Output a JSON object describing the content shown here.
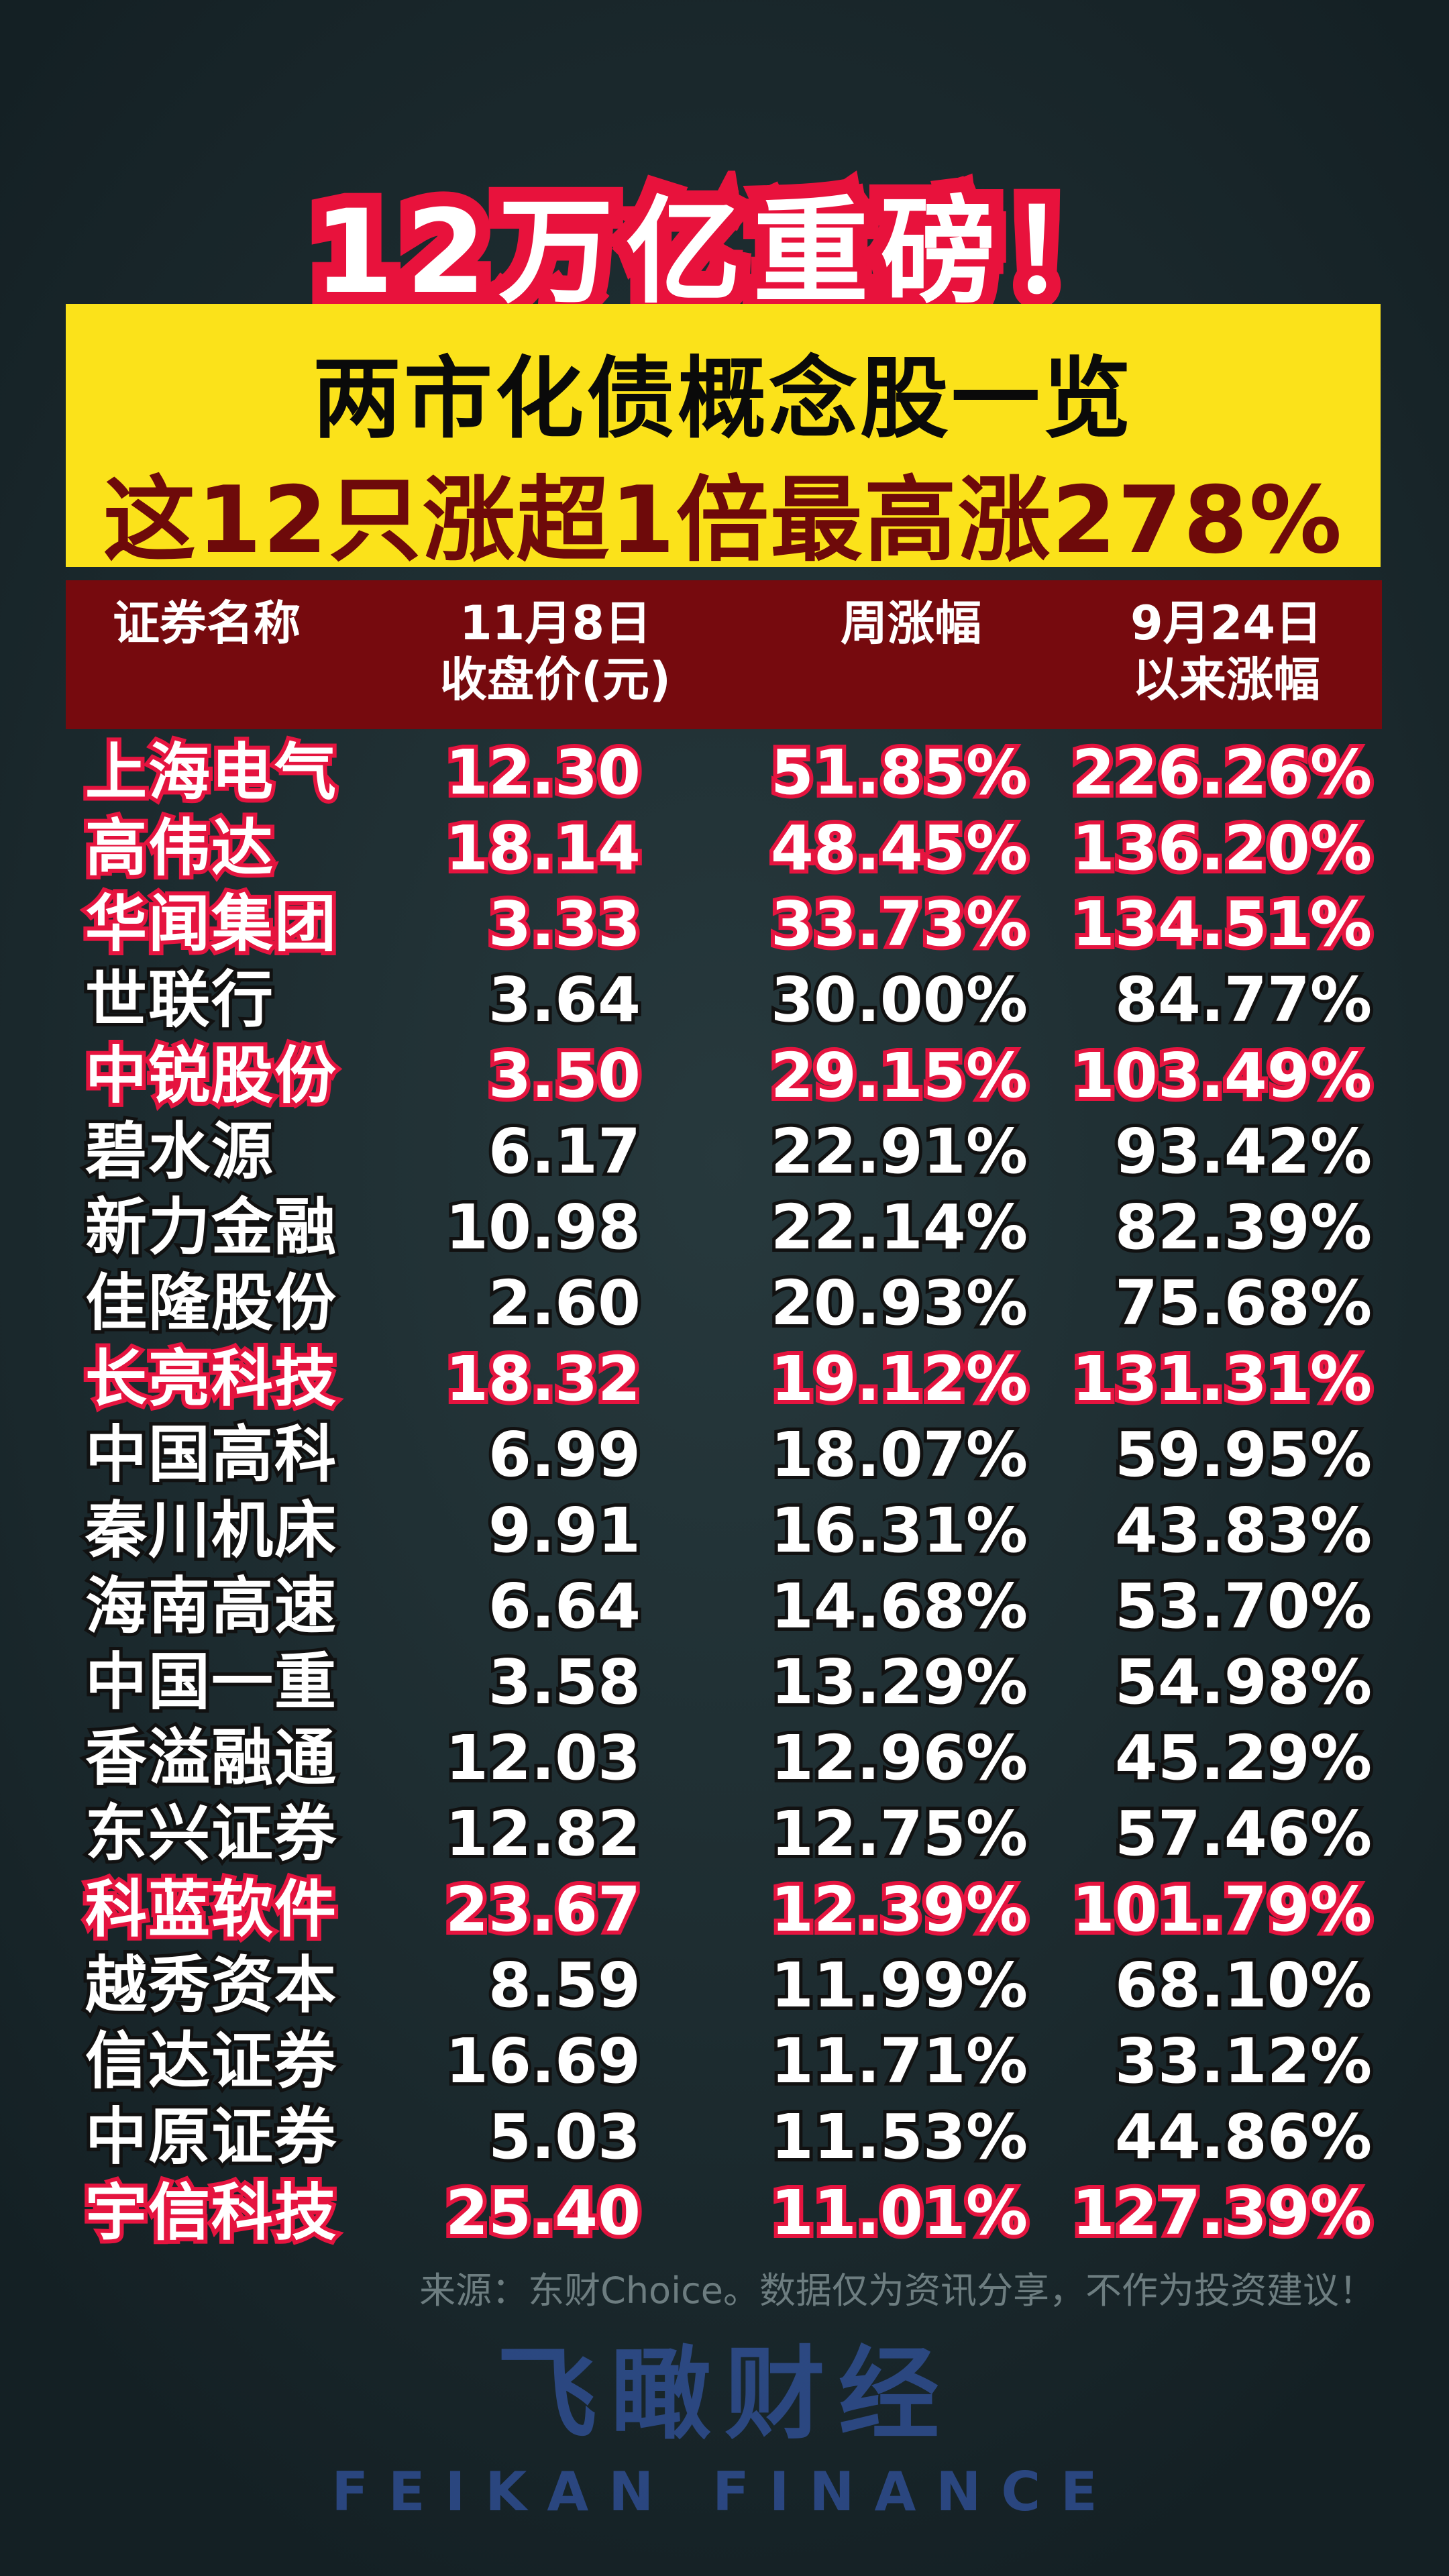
{
  "title": "12万亿重磅！",
  "subtitle_line1": "两市化债概念股一览",
  "subtitle_line2": "这12只涨超1倍最高涨278%",
  "watermark": {
    "cn": "飞瞰财经",
    "en": "FEIKAN FINANCE"
  },
  "table": {
    "headers": [
      {
        "line1": "证券名称",
        "line2": ""
      },
      {
        "line1": "11月8日",
        "line2": "收盘价(元)"
      },
      {
        "line1": "周涨幅",
        "line2": ""
      },
      {
        "line1": "9月24日",
        "line2": "以来涨幅"
      }
    ],
    "rows": [
      {
        "name": "上海电气",
        "close": "12.30",
        "weekly": "51.85%",
        "since": "226.26%",
        "highlight": true
      },
      {
        "name": "高伟达",
        "close": "18.14",
        "weekly": "48.45%",
        "since": "136.20%",
        "highlight": true
      },
      {
        "name": "华闻集团",
        "close": "3.33",
        "weekly": "33.73%",
        "since": "134.51%",
        "highlight": true
      },
      {
        "name": "世联行",
        "close": "3.64",
        "weekly": "30.00%",
        "since": "84.77%",
        "highlight": false
      },
      {
        "name": "中锐股份",
        "close": "3.50",
        "weekly": "29.15%",
        "since": "103.49%",
        "highlight": true
      },
      {
        "name": "碧水源",
        "close": "6.17",
        "weekly": "22.91%",
        "since": "93.42%",
        "highlight": false
      },
      {
        "name": "新力金融",
        "close": "10.98",
        "weekly": "22.14%",
        "since": "82.39%",
        "highlight": false
      },
      {
        "name": "佳隆股份",
        "close": "2.60",
        "weekly": "20.93%",
        "since": "75.68%",
        "highlight": false
      },
      {
        "name": "长亮科技",
        "close": "18.32",
        "weekly": "19.12%",
        "since": "131.31%",
        "highlight": true
      },
      {
        "name": "中国高科",
        "close": "6.99",
        "weekly": "18.07%",
        "since": "59.95%",
        "highlight": false
      },
      {
        "name": "秦川机床",
        "close": "9.91",
        "weekly": "16.31%",
        "since": "43.83%",
        "highlight": false
      },
      {
        "name": "海南高速",
        "close": "6.64",
        "weekly": "14.68%",
        "since": "53.70%",
        "highlight": false
      },
      {
        "name": "中国一重",
        "close": "3.58",
        "weekly": "13.29%",
        "since": "54.98%",
        "highlight": false
      },
      {
        "name": "香溢融通",
        "close": "12.03",
        "weekly": "12.96%",
        "since": "45.29%",
        "highlight": false
      },
      {
        "name": "东兴证券",
        "close": "12.82",
        "weekly": "12.75%",
        "since": "57.46%",
        "highlight": false
      },
      {
        "name": "科蓝软件",
        "close": "23.67",
        "weekly": "12.39%",
        "since": "101.79%",
        "highlight": true
      },
      {
        "name": "越秀资本",
        "close": "8.59",
        "weekly": "11.99%",
        "since": "68.10%",
        "highlight": false
      },
      {
        "name": "信达证券",
        "close": "16.69",
        "weekly": "11.71%",
        "since": "33.12%",
        "highlight": false
      },
      {
        "name": "中原证券",
        "close": "5.03",
        "weekly": "11.53%",
        "since": "44.86%",
        "highlight": false
      },
      {
        "name": "宇信科技",
        "close": "25.40",
        "weekly": "11.01%",
        "since": "127.39%",
        "highlight": true
      }
    ]
  },
  "footer": "来源：东财Choice。数据仅为资讯分享，不作为投资建议！",
  "colors": {
    "highlight": "#e5143f",
    "yellow": "#fbe21a",
    "header_bg": "#760a0e",
    "subtitle2": "#6e0a0a"
  }
}
